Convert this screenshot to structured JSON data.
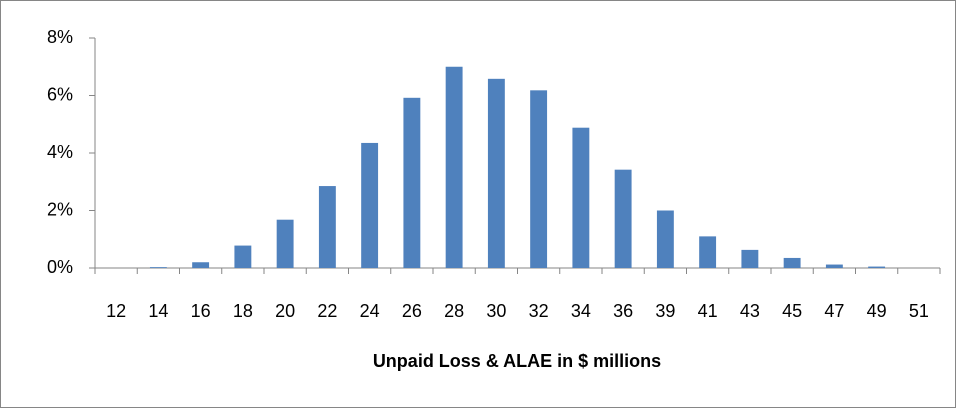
{
  "chart_data": {
    "type": "bar",
    "x_label": "Unpaid Loss & ALAE in $ millions",
    "categories": [
      "12",
      "14",
      "16",
      "18",
      "20",
      "22",
      "24",
      "26",
      "28",
      "30",
      "32",
      "34",
      "36",
      "39",
      "41",
      "43",
      "45",
      "47",
      "49",
      "51"
    ],
    "values": [
      0,
      0.03,
      0.2,
      0.78,
      1.68,
      2.85,
      4.35,
      5.92,
      7.0,
      6.58,
      6.18,
      4.88,
      3.42,
      2.0,
      1.1,
      0.63,
      0.35,
      0.12,
      0.05,
      0
    ],
    "color": "#4f81bd",
    "ylim": [
      0,
      8
    ],
    "yticks": [
      {
        "value": 0,
        "label": "0%"
      },
      {
        "value": 2,
        "label": "2%"
      },
      {
        "value": 4,
        "label": "4%"
      },
      {
        "value": 6,
        "label": "6%"
      },
      {
        "value": 8,
        "label": "8%"
      }
    ],
    "grid": false
  }
}
